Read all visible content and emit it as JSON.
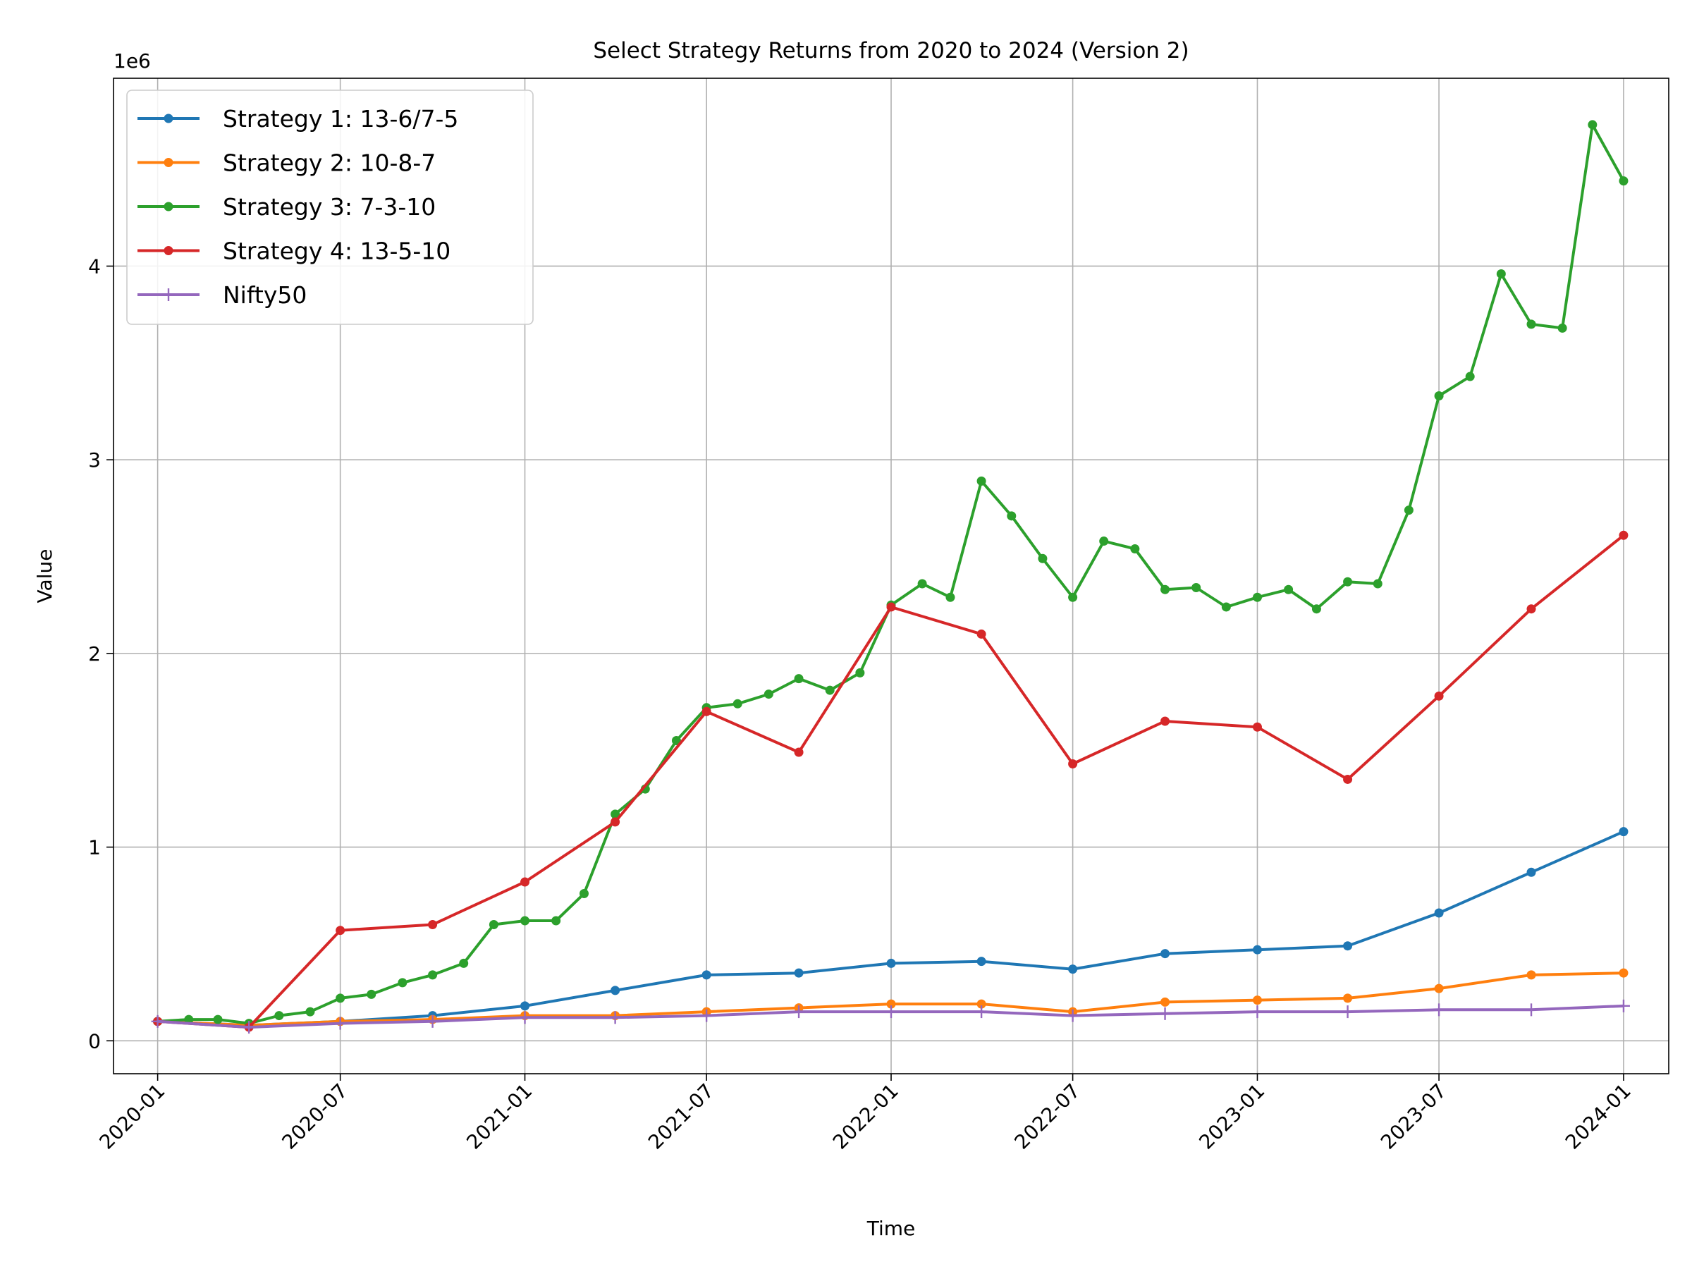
{
  "chart_data": {
    "type": "line",
    "title": "Select Strategy Returns from 2020 to 2024 (Version 2)",
    "xlabel": "Time",
    "ylabel": "Value",
    "y_offset_label": "1e6",
    "x_ticks": [
      "2020-01",
      "2020-07",
      "2021-01",
      "2021-07",
      "2022-01",
      "2022-07",
      "2023-01",
      "2023-07",
      "2024-01"
    ],
    "y_ticks": [
      0,
      1,
      2,
      3,
      4
    ],
    "xlim": [
      "2019-11-18",
      "2024-02-15"
    ],
    "ylim": [
      -0.17,
      4.97
    ],
    "y_unit_multiplier": 1000000,
    "grid": true,
    "legend_position": "upper left",
    "series": [
      {
        "name": "Strategy 1: 13-6/7-5",
        "color": "#1f77b4",
        "marker": "dot",
        "x": [
          "2020-01-01",
          "2020-04-01",
          "2020-07-01",
          "2020-10-01",
          "2021-01-01",
          "2021-04-01",
          "2021-07-01",
          "2021-10-01",
          "2022-01-01",
          "2022-04-01",
          "2022-07-01",
          "2022-10-01",
          "2023-01-01",
          "2023-04-01",
          "2023-07-01",
          "2023-10-01",
          "2024-01-01"
        ],
        "y": [
          0.1,
          0.08,
          0.1,
          0.13,
          0.18,
          0.26,
          0.34,
          0.35,
          0.4,
          0.41,
          0.37,
          0.45,
          0.47,
          0.49,
          0.66,
          0.87,
          1.08
        ]
      },
      {
        "name": "Strategy 2: 10-8-7",
        "color": "#ff7f0e",
        "marker": "dot",
        "x": [
          "2020-01-01",
          "2020-04-01",
          "2020-07-01",
          "2020-10-01",
          "2021-01-01",
          "2021-04-01",
          "2021-07-01",
          "2021-10-01",
          "2022-01-01",
          "2022-04-01",
          "2022-07-01",
          "2022-10-01",
          "2023-01-01",
          "2023-04-01",
          "2023-07-01",
          "2023-10-01",
          "2024-01-01"
        ],
        "y": [
          0.1,
          0.08,
          0.1,
          0.11,
          0.13,
          0.13,
          0.15,
          0.17,
          0.19,
          0.19,
          0.15,
          0.2,
          0.21,
          0.22,
          0.27,
          0.34,
          0.35
        ]
      },
      {
        "name": "Strategy 3: 7-3-10",
        "color": "#2ca02c",
        "marker": "dot",
        "x": [
          "2020-01-01",
          "2020-02-01",
          "2020-03-01",
          "2020-04-01",
          "2020-05-01",
          "2020-06-01",
          "2020-07-01",
          "2020-08-01",
          "2020-09-01",
          "2020-10-01",
          "2020-11-01",
          "2020-12-01",
          "2021-01-01",
          "2021-02-01",
          "2021-03-01",
          "2021-04-01",
          "2021-05-01",
          "2021-06-01",
          "2021-07-01",
          "2021-08-01",
          "2021-09-01",
          "2021-10-01",
          "2021-11-01",
          "2021-12-01",
          "2022-01-01",
          "2022-02-01",
          "2022-03-01",
          "2022-04-01",
          "2022-05-01",
          "2022-06-01",
          "2022-07-01",
          "2022-08-01",
          "2022-09-01",
          "2022-10-01",
          "2022-11-01",
          "2022-12-01",
          "2023-01-01",
          "2023-02-01",
          "2023-03-01",
          "2023-04-01",
          "2023-05-01",
          "2023-06-01",
          "2023-07-01",
          "2023-08-01",
          "2023-09-01",
          "2023-10-01",
          "2023-11-01",
          "2023-12-01",
          "2024-01-01"
        ],
        "y": [
          0.1,
          0.11,
          0.11,
          0.09,
          0.13,
          0.15,
          0.22,
          0.24,
          0.3,
          0.34,
          0.4,
          0.6,
          0.62,
          0.62,
          0.76,
          1.17,
          1.3,
          1.55,
          1.72,
          1.74,
          1.79,
          1.87,
          1.81,
          1.9,
          2.25,
          2.36,
          2.29,
          2.89,
          2.71,
          2.49,
          2.29,
          2.58,
          2.54,
          2.33,
          2.34,
          2.24,
          2.29,
          2.33,
          2.23,
          2.37,
          2.36,
          2.74,
          3.33,
          3.43,
          3.96,
          3.7,
          3.68,
          4.73,
          4.44
        ]
      },
      {
        "name": "Strategy 4: 13-5-10",
        "color": "#d62728",
        "marker": "dot",
        "x": [
          "2020-01-01",
          "2020-04-01",
          "2020-07-01",
          "2020-10-01",
          "2021-01-01",
          "2021-04-01",
          "2021-07-01",
          "2021-10-01",
          "2022-01-01",
          "2022-04-01",
          "2022-07-01",
          "2022-10-01",
          "2023-01-01",
          "2023-04-01",
          "2023-07-01",
          "2023-10-01",
          "2024-01-01"
        ],
        "y": [
          0.1,
          0.07,
          0.57,
          0.6,
          0.82,
          1.13,
          1.7,
          1.49,
          2.24,
          2.1,
          1.43,
          1.65,
          1.62,
          1.35,
          1.78,
          2.23,
          2.61
        ]
      },
      {
        "name": "Nifty50",
        "color": "#9467bd",
        "marker": "plus",
        "x": [
          "2020-01-01",
          "2020-04-01",
          "2020-07-01",
          "2020-10-01",
          "2021-01-01",
          "2021-04-01",
          "2021-07-01",
          "2021-10-01",
          "2022-01-01",
          "2022-04-01",
          "2022-07-01",
          "2022-10-01",
          "2023-01-01",
          "2023-04-01",
          "2023-07-01",
          "2023-10-01",
          "2024-01-01"
        ],
        "y": [
          0.1,
          0.07,
          0.09,
          0.1,
          0.12,
          0.12,
          0.13,
          0.15,
          0.15,
          0.15,
          0.13,
          0.14,
          0.15,
          0.15,
          0.16,
          0.16,
          0.18
        ]
      }
    ]
  }
}
